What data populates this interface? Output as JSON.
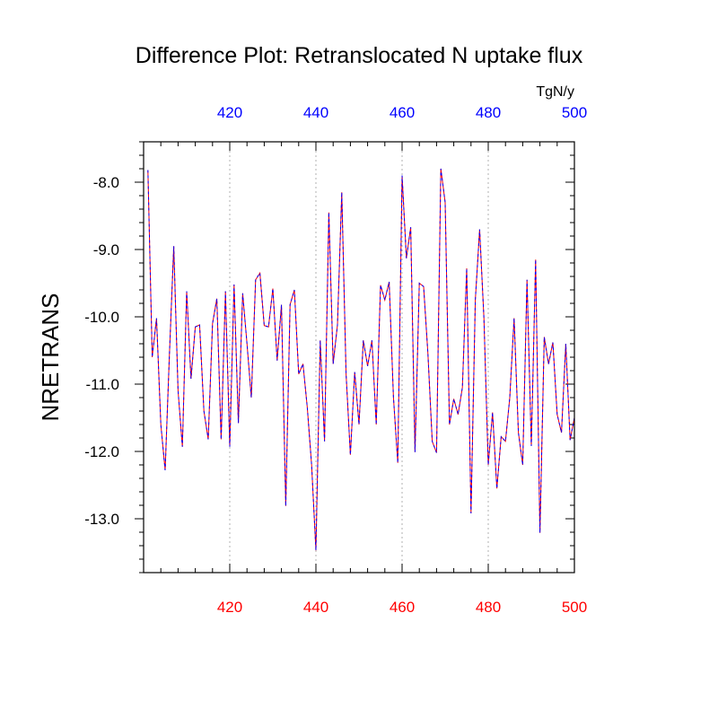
{
  "chart_data": {
    "type": "line",
    "title": "Difference Plot: Retranslocated N uptake flux",
    "units_label": "TgN/y",
    "ylabel": "NRETRANS",
    "xlabel": "",
    "xlim": [
      400,
      500
    ],
    "ylim": [
      -13.8,
      -7.4
    ],
    "x_ticks": [
      420,
      440,
      460,
      480,
      500
    ],
    "x_tick_labels": [
      "420",
      "440",
      "460",
      "480",
      "500"
    ],
    "y_ticks": [
      -8.0,
      -9.0,
      -10.0,
      -11.0,
      -12.0,
      -13.0
    ],
    "y_tick_labels": [
      "-8.0",
      "-9.0",
      "-10.0",
      "-11.0",
      "-12.0",
      "-13.0"
    ],
    "grid": "vertical dotted lines at major x ticks",
    "colors": {
      "top_axis_labels": "#0000ff",
      "bottom_axis_labels": "#ff0000",
      "series_a": "#ff0000",
      "series_b": "#0000ff",
      "grid": "#b0b0b0"
    },
    "x": [
      401,
      402,
      403,
      404,
      405,
      406,
      407,
      408,
      409,
      410,
      411,
      412,
      413,
      414,
      415,
      416,
      417,
      418,
      419,
      420,
      421,
      422,
      423,
      424,
      425,
      426,
      427,
      428,
      429,
      430,
      431,
      432,
      433,
      434,
      435,
      436,
      437,
      438,
      439,
      440,
      441,
      442,
      443,
      444,
      445,
      446,
      447,
      448,
      449,
      450,
      451,
      452,
      453,
      454,
      455,
      456,
      457,
      458,
      459,
      460,
      461,
      462,
      463,
      464,
      465,
      466,
      467,
      468,
      469,
      470,
      471,
      472,
      473,
      474,
      475,
      476,
      477,
      478,
      479,
      480,
      481,
      482,
      483,
      484,
      485,
      486,
      487,
      488,
      489,
      490,
      491,
      492,
      493,
      494,
      495,
      496,
      497,
      498,
      499,
      500
    ],
    "series": [
      {
        "values": [
          -7.82,
          -10.6,
          -10.02,
          -11.6,
          -12.28,
          -10.55,
          -8.95,
          -11.1,
          -11.93,
          -9.62,
          -10.92,
          -10.15,
          -10.12,
          -11.4,
          -11.82,
          -10.1,
          -9.73,
          -11.82,
          -9.62,
          -11.93,
          -9.52,
          -11.58,
          -9.65,
          -10.4,
          -11.2,
          -9.45,
          -9.35,
          -10.13,
          -10.15,
          -9.58,
          -10.65,
          -9.82,
          -12.81,
          -9.82,
          -9.6,
          -10.85,
          -10.7,
          -11.35,
          -12.2,
          -13.47,
          -10.35,
          -11.85,
          -8.45,
          -10.7,
          -10.12,
          -8.15,
          -10.85,
          -12.05,
          -10.82,
          -11.6,
          -10.35,
          -10.73,
          -10.35,
          -11.6,
          -9.53,
          -9.75,
          -9.48,
          -11.2,
          -12.17,
          -7.9,
          -9.13,
          -8.67,
          -12.01,
          -9.5,
          -9.55,
          -10.55,
          -11.85,
          -12.02,
          -7.8,
          -8.3,
          -11.6,
          -11.22,
          -11.45,
          -11.05,
          -9.28,
          -12.92,
          -9.75,
          -8.7,
          -10.02,
          -12.2,
          -11.42,
          -12.55,
          -11.78,
          -11.85,
          -11.2,
          -10.02,
          -11.72,
          -12.2,
          -9.45,
          -11.92,
          -9.15,
          -13.21,
          -10.3,
          -10.7,
          -10.38,
          -11.45,
          -11.72,
          -10.4,
          -11.83,
          -11.5
        ]
      }
    ]
  }
}
